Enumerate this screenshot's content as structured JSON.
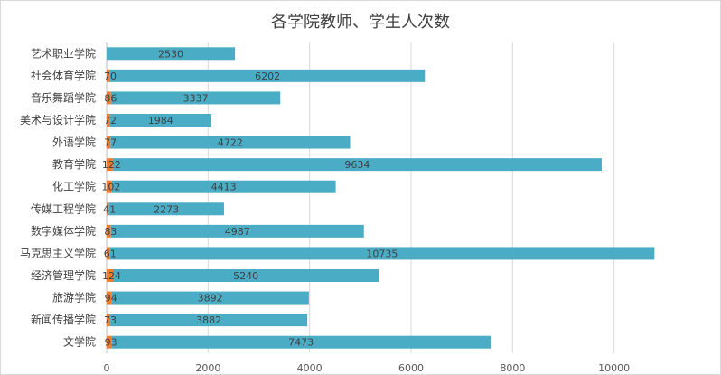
{
  "chart_data": {
    "type": "bar",
    "orientation": "horizontal",
    "stacked": true,
    "title": "各学院教师、学生人次数",
    "categories": [
      "艺术职业学院",
      "社会体育学院",
      "音乐舞蹈学院",
      "美术与设计学院",
      "外语学院",
      "教育学院",
      "化工学院",
      "传媒工程学院",
      "数字媒体学院",
      "马克思主义学院",
      "经济管理学院",
      "旅游学院",
      "新闻传播学院",
      "文学院"
    ],
    "series": [
      {
        "color": "#ED7D31",
        "values": [
          0,
          70,
          86,
          72,
          77,
          122,
          102,
          41,
          83,
          61,
          124,
          94,
          73,
          93
        ],
        "labels": [
          "",
          "70",
          "86",
          "72",
          "77",
          "122",
          "102",
          "41",
          "83",
          "61",
          "124",
          "94",
          "73",
          "93"
        ]
      },
      {
        "color": "#4BACC6",
        "values": [
          2530,
          6202,
          3337,
          1984,
          4722,
          9634,
          4413,
          2273,
          4987,
          10735,
          5240,
          3892,
          3882,
          7473
        ],
        "labels": [
          "2530",
          "6202",
          "3337",
          "1984",
          "4722",
          "9634",
          "4413",
          "2273",
          "4987",
          "10735",
          "5240",
          "3892",
          "3882",
          "7473"
        ]
      }
    ],
    "xlim": [
      0,
      12000
    ],
    "xticks": [
      "0",
      "2000",
      "4000",
      "6000",
      "8000",
      "10000"
    ],
    "grid": true,
    "legend": "none"
  }
}
